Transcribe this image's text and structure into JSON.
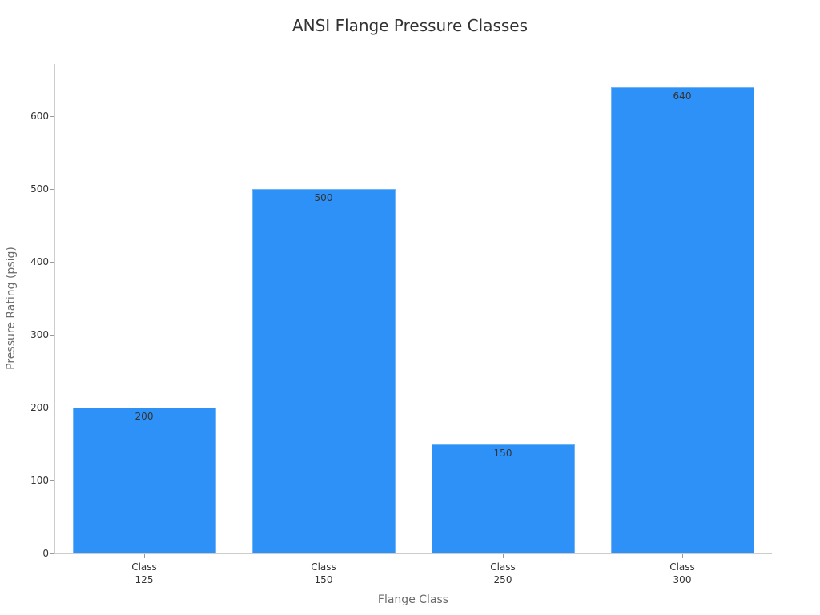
{
  "chart_data": {
    "type": "bar",
    "title": "ANSI Flange Pressure Classes",
    "xlabel": "Flange Class",
    "ylabel": "Pressure Rating (psig)",
    "categories": [
      "Class 125",
      "Class 150",
      "Class 250",
      "Class 300"
    ],
    "category_lines": [
      [
        "Class",
        "125"
      ],
      [
        "Class",
        "150"
      ],
      [
        "Class",
        "250"
      ],
      [
        "Class",
        "300"
      ]
    ],
    "values": [
      200,
      500,
      150,
      640
    ],
    "data_labels": [
      "200",
      "500",
      "150",
      "640"
    ],
    "yticks": [
      0,
      100,
      200,
      300,
      400,
      500,
      600
    ],
    "ylim": [
      0,
      672
    ],
    "grid": false,
    "legend": null,
    "bar_color": "#2e91f7"
  }
}
